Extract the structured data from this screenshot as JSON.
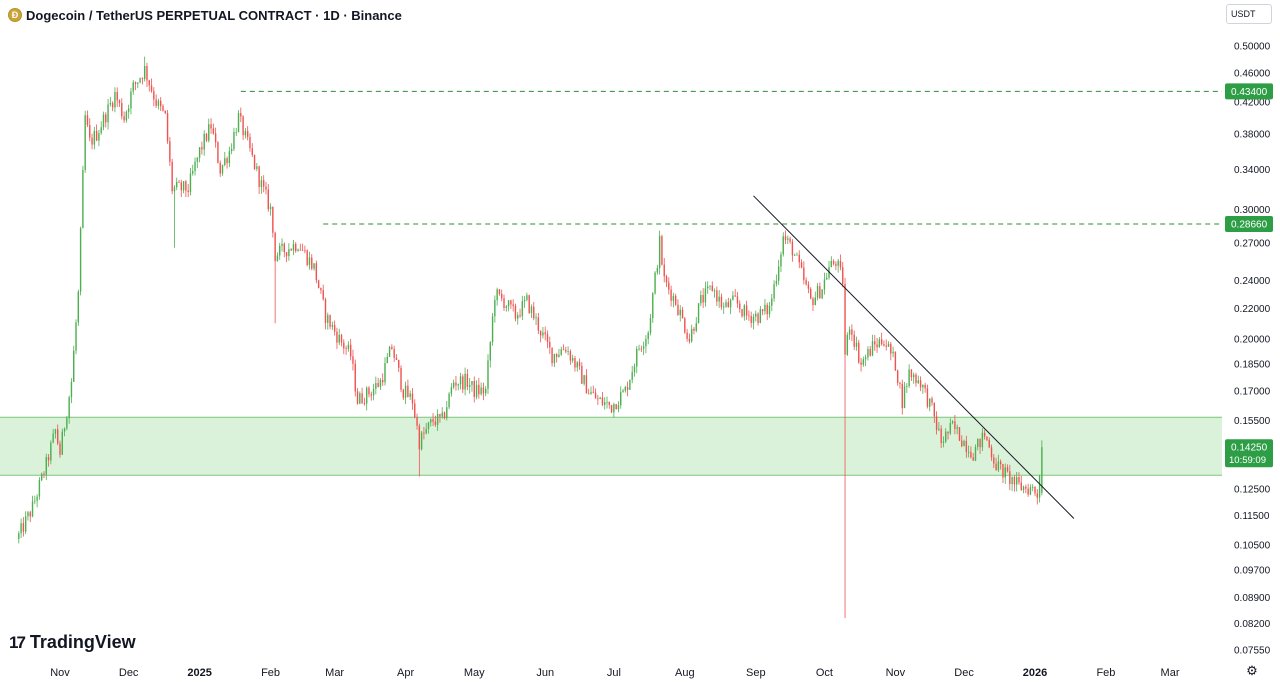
{
  "header": {
    "title": "Dogecoin / TetherUS PERPETUAL CONTRACT · 1D · Binance",
    "coin_icon": "doge-coin-icon"
  },
  "currency_button": {
    "label": "USDT"
  },
  "logo": {
    "text": "TradingView"
  },
  "colors": {
    "up": "#26a69a",
    "up_body": "#4caf50",
    "down": "#ef5350",
    "zone_fill": "#d4f0d2",
    "zone_border": "#7bc67a",
    "dash_line": "#2e8b3e",
    "label_green": "#2e9e46"
  },
  "chart_data": {
    "type": "candlestick",
    "symbol": "Dogecoin / TetherUS PERPETUAL CONTRACT",
    "interval": "1D",
    "exchange": "Binance",
    "y_scale": "log",
    "ylim": [
      0.0732,
      0.526
    ],
    "y_ticks": [
      "0.50000",
      "0.46000",
      "0.42000",
      "0.38000",
      "0.34000",
      "0.30000",
      "0.27000",
      "0.24000",
      "0.22000",
      "0.20000",
      "0.18500",
      "0.17000",
      "0.15500",
      "0.12500",
      "0.11500",
      "0.10500",
      "0.09700",
      "0.08900",
      "0.08200",
      "0.07550"
    ],
    "x_labels": [
      {
        "label": "Nov",
        "date": "2024-11-01",
        "bold": false
      },
      {
        "label": "Dec",
        "date": "2024-12-01",
        "bold": false
      },
      {
        "label": "2025",
        "date": "2025-01-01",
        "bold": true
      },
      {
        "label": "Feb",
        "date": "2025-02-01",
        "bold": false
      },
      {
        "label": "Mar",
        "date": "2025-03-01",
        "bold": false
      },
      {
        "label": "Apr",
        "date": "2025-04-01",
        "bold": false
      },
      {
        "label": "May",
        "date": "2025-05-01",
        "bold": false
      },
      {
        "label": "Jun",
        "date": "2025-06-01",
        "bold": false
      },
      {
        "label": "Jul",
        "date": "2025-07-01",
        "bold": false
      },
      {
        "label": "Aug",
        "date": "2025-08-01",
        "bold": false
      },
      {
        "label": "Sep",
        "date": "2025-09-01",
        "bold": false
      },
      {
        "label": "Oct",
        "date": "2025-10-01",
        "bold": false
      },
      {
        "label": "Nov",
        "date": "2025-11-01",
        "bold": false
      },
      {
        "label": "Dec",
        "date": "2025-12-01",
        "bold": false
      },
      {
        "label": "2026",
        "date": "2026-01-01",
        "bold": true
      },
      {
        "label": "Feb",
        "date": "2026-02-01",
        "bold": false
      },
      {
        "label": "Mar",
        "date": "2026-03-01",
        "bold": false
      }
    ],
    "price_path": [
      [
        "2024-10-14",
        0.108
      ],
      [
        "2024-10-20",
        0.118
      ],
      [
        "2024-10-26",
        0.135
      ],
      [
        "2024-10-30",
        0.15
      ],
      [
        "2024-11-01",
        0.14
      ],
      [
        "2024-11-06",
        0.175
      ],
      [
        "2024-11-09",
        0.23
      ],
      [
        "2024-11-12",
        0.4
      ],
      [
        "2024-11-14",
        0.37
      ],
      [
        "2024-11-17",
        0.38
      ],
      [
        "2024-11-22",
        0.41
      ],
      [
        "2024-11-25",
        0.43
      ],
      [
        "2024-11-29",
        0.4
      ],
      [
        "2024-12-03",
        0.44
      ],
      [
        "2024-12-08",
        0.465
      ],
      [
        "2024-12-13",
        0.42
      ],
      [
        "2024-12-17",
        0.4
      ],
      [
        "2024-12-20",
        0.32
      ],
      [
        "2024-12-27",
        0.32
      ],
      [
        "2025-01-01",
        0.36
      ],
      [
        "2025-01-06",
        0.39
      ],
      [
        "2025-01-10",
        0.34
      ],
      [
        "2025-01-14",
        0.36
      ],
      [
        "2025-01-18",
        0.4
      ],
      [
        "2025-01-23",
        0.36
      ],
      [
        "2025-01-27",
        0.33
      ],
      [
        "2025-02-01",
        0.3
      ],
      [
        "2025-02-03",
        0.26
      ],
      [
        "2025-02-08",
        0.265
      ],
      [
        "2025-02-13",
        0.27
      ],
      [
        "2025-02-20",
        0.25
      ],
      [
        "2025-02-25",
        0.215
      ],
      [
        "2025-03-03",
        0.2
      ],
      [
        "2025-03-08",
        0.19
      ],
      [
        "2025-03-11",
        0.165
      ],
      [
        "2025-03-17",
        0.17
      ],
      [
        "2025-03-21",
        0.175
      ],
      [
        "2025-03-26",
        0.195
      ],
      [
        "2025-03-31",
        0.17
      ],
      [
        "2025-04-04",
        0.165
      ],
      [
        "2025-04-07",
        0.145
      ],
      [
        "2025-04-13",
        0.155
      ],
      [
        "2025-04-17",
        0.155
      ],
      [
        "2025-04-22",
        0.175
      ],
      [
        "2025-04-28",
        0.175
      ],
      [
        "2025-05-01",
        0.17
      ],
      [
        "2025-05-06",
        0.17
      ],
      [
        "2025-05-10",
        0.23
      ],
      [
        "2025-05-14",
        0.225
      ],
      [
        "2025-05-19",
        0.215
      ],
      [
        "2025-05-24",
        0.225
      ],
      [
        "2025-05-30",
        0.205
      ],
      [
        "2025-06-04",
        0.19
      ],
      [
        "2025-06-10",
        0.195
      ],
      [
        "2025-06-14",
        0.185
      ],
      [
        "2025-06-20",
        0.17
      ],
      [
        "2025-06-24",
        0.165
      ],
      [
        "2025-06-30",
        0.162
      ],
      [
        "2025-07-06",
        0.17
      ],
      [
        "2025-07-12",
        0.195
      ],
      [
        "2025-07-16",
        0.205
      ],
      [
        "2025-07-21",
        0.27
      ],
      [
        "2025-07-23",
        0.24
      ],
      [
        "2025-07-28",
        0.225
      ],
      [
        "2025-08-03",
        0.2
      ],
      [
        "2025-08-08",
        0.225
      ],
      [
        "2025-08-13",
        0.235
      ],
      [
        "2025-08-18",
        0.22
      ],
      [
        "2025-08-23",
        0.225
      ],
      [
        "2025-08-28",
        0.215
      ],
      [
        "2025-09-02",
        0.215
      ],
      [
        "2025-09-07",
        0.22
      ],
      [
        "2025-09-10",
        0.245
      ],
      [
        "2025-09-13",
        0.275
      ],
      [
        "2025-09-17",
        0.265
      ],
      [
        "2025-09-21",
        0.245
      ],
      [
        "2025-09-25",
        0.225
      ],
      [
        "2025-09-30",
        0.235
      ],
      [
        "2025-10-03",
        0.25
      ],
      [
        "2025-10-06",
        0.255
      ],
      [
        "2025-10-09",
        0.24
      ],
      [
        "2025-10-10",
        0.19
      ],
      [
        "2025-10-12",
        0.21
      ],
      [
        "2025-10-17",
        0.185
      ],
      [
        "2025-10-22",
        0.195
      ],
      [
        "2025-10-27",
        0.2
      ],
      [
        "2025-11-01",
        0.185
      ],
      [
        "2025-11-04",
        0.165
      ],
      [
        "2025-11-07",
        0.18
      ],
      [
        "2025-11-12",
        0.175
      ],
      [
        "2025-11-17",
        0.16
      ],
      [
        "2025-11-21",
        0.145
      ],
      [
        "2025-11-26",
        0.152
      ],
      [
        "2025-12-01",
        0.145
      ],
      [
        "2025-12-05",
        0.14
      ],
      [
        "2025-12-10",
        0.148
      ],
      [
        "2025-12-15",
        0.135
      ],
      [
        "2025-12-20",
        0.13
      ],
      [
        "2025-12-25",
        0.126
      ],
      [
        "2025-12-31",
        0.125
      ],
      [
        "2026-01-02",
        0.123
      ],
      [
        "2026-01-04",
        0.1425
      ]
    ],
    "wick_extremes": [
      {
        "date": "2024-12-08",
        "high": 0.484
      },
      {
        "date": "2024-12-21",
        "low": 0.266
      },
      {
        "date": "2025-02-03",
        "low": 0.21
      },
      {
        "date": "2025-04-07",
        "low": 0.13
      },
      {
        "date": "2025-10-10",
        "low": 0.0835
      }
    ],
    "support_zone": {
      "low": 0.1305,
      "high": 0.1565
    },
    "resistance_levels": [
      {
        "price": 0.434,
        "label": "0.43400",
        "from": "2025-01-19"
      },
      {
        "price": 0.2866,
        "label": "0.28660",
        "from": "2025-02-24"
      }
    ],
    "trendline": [
      [
        "2025-08-31",
        0.313
      ],
      [
        "2026-01-18",
        0.114
      ]
    ],
    "last_price": {
      "value": "0.14250",
      "countdown": "10:59:09"
    }
  }
}
